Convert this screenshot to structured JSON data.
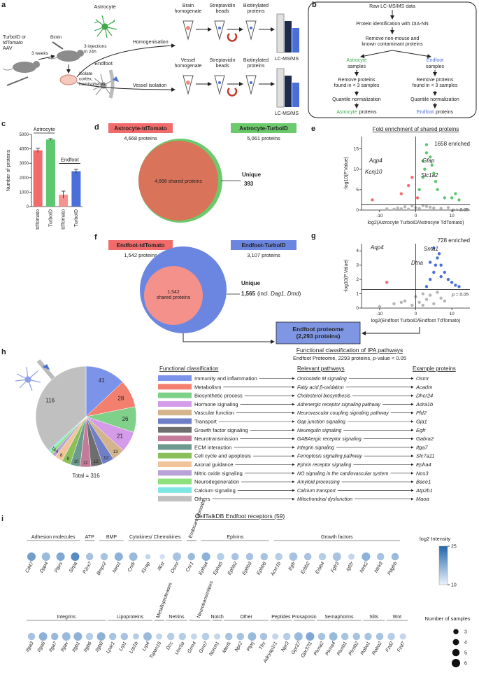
{
  "a": {
    "label": "a",
    "vector": [
      "TurboID or",
      "tdTomato",
      "AAV"
    ],
    "weeks": "3 weeks",
    "biotin": "Biotin",
    "injections": [
      "3 injections",
      "in 24h"
    ],
    "isolate": [
      "Isolate",
      "cortex,",
      "hemispheres"
    ],
    "astrocyte": "Astrocyte",
    "endfoot": "Endfoot",
    "homogenisation": "Homogenisation",
    "vessel_isolation": "Vessel isolation",
    "brain_homogenate": [
      "Brain",
      "homogenate"
    ],
    "vessel_homogenate": [
      "Vessel",
      "homogenate"
    ],
    "beads_top": [
      "Streptavidin",
      "beads"
    ],
    "beads_bottom": [
      "Streptavidin",
      "beads"
    ],
    "proteins_top": [
      "Biotinylated",
      "proteins"
    ],
    "proteins_bottom": [
      "Biotinylated",
      "proteins"
    ],
    "ms_top": "LC-MS/MS",
    "ms_bottom": "LC-MS/MS"
  },
  "b": {
    "label": "b",
    "raw": "Raw LC-MS/MS data",
    "identification": "Protein identification with DIA-NN",
    "remove": [
      "Remove non-mouse and",
      "known contaminant proteins"
    ],
    "astro_samples": {
      "cell": "Astrocyte",
      "rest": "samples"
    },
    "endfoot_samples": {
      "cell": "Endfoot",
      "rest": "samples"
    },
    "filter_left": [
      "Remove proteins",
      "found in < 3 samples"
    ],
    "filter_right": [
      "Remove proteins",
      "found in < 3 samples"
    ],
    "norm_left": "Quantile normalization",
    "norm_right": "Quantile normalization",
    "astro_result": {
      "cell": "Astrocyte",
      "rest": "proteins"
    },
    "endfoot_result": {
      "cell": "Endfoot",
      "rest": "proteins"
    }
  },
  "d": {
    "label": "d",
    "left": "Astrocyte-tdTomato",
    "left_count": "4,668 proteins",
    "right": "Astrocyte-TurboID",
    "right_count": "5,061 proteins",
    "shared": "4,668 shared proteins",
    "unique": "Unique",
    "unique_count": "393"
  },
  "f": {
    "label": "f",
    "left": "Endfoot-tdTomato",
    "left_count": "1,542 proteins",
    "right": "Endfoot-TurboID",
    "right_count": "3,107 proteins",
    "shared": [
      "1,542",
      "shared proteins"
    ],
    "unique": "Unique",
    "unique_count": "1,565",
    "unique_note": [
      "(incl. ",
      "Dag1",
      ", ",
      "Dmd",
      ")"
    ],
    "proteome": [
      "Endfoot proteome",
      "(2,293 proteins)"
    ]
  },
  "h": {
    "label": "h"
  },
  "i": {
    "label": "i"
  },
  "chart_data": [
    {
      "type": "bar",
      "label": "c",
      "ylabel": "Number of proteins",
      "categories": [
        "tdTomato",
        "TurboID",
        "tdTomato",
        "TurboID"
      ],
      "groups": [
        "Astrocyte",
        "Endfoot"
      ],
      "values": [
        3900,
        4650,
        820,
        2450
      ],
      "errors": [
        150,
        60,
        250,
        150
      ],
      "colors": [
        "#f26b6b",
        "#5cc870",
        "#f4938f",
        "#4a6fd8"
      ],
      "ylim": [
        0,
        5000
      ],
      "yticks": [
        0,
        1000,
        2000,
        3000,
        4000,
        5000
      ]
    },
    {
      "type": "scatter",
      "label": "e",
      "title": "Fold enrichment of shared proteins",
      "xlabel": "log2(Astrocyte TurboID/Astrocyte TdTomato)",
      "ylabel": "-log10(P.Value)",
      "annotation": "1658 enriched",
      "threshold_label": "p = 0.05",
      "threshold": 1.3,
      "xline": 0,
      "genes": [
        "Aqp4",
        "Gfap",
        "Kcnj10",
        "Slc1a2"
      ],
      "xlim": [
        -15,
        15
      ],
      "ylim": [
        0,
        18
      ],
      "xticks": [
        -10,
        0,
        10
      ],
      "yticks": [
        0,
        5,
        10,
        15
      ],
      "series": [
        {
          "color": "#b5b5b5",
          "x": [
            -8,
            -5,
            -3,
            -2,
            -1,
            0,
            1,
            2,
            3,
            -4,
            4,
            -6,
            5,
            7,
            9
          ],
          "y": [
            0.3,
            0.5,
            0.8,
            0.2,
            1,
            0.6,
            0.4,
            1.1,
            0.9,
            0.3,
            0.7,
            0.2,
            0.5,
            0.4,
            0.6
          ]
        },
        {
          "color": "#f26b6b",
          "x": [
            -12,
            -4,
            -2,
            -1,
            0.5
          ],
          "y": [
            2.5,
            4,
            6,
            8,
            3
          ]
        },
        {
          "color": "#5cc870",
          "x": [
            1,
            2,
            2.5,
            3,
            3,
            4,
            4.5,
            5,
            5.5,
            6,
            8,
            10,
            11,
            12,
            2
          ],
          "y": [
            5,
            8,
            10,
            14,
            16,
            13,
            11,
            9,
            7,
            5,
            3,
            3,
            4,
            2.5,
            12
          ]
        }
      ]
    },
    {
      "type": "scatter",
      "label": "g",
      "xlabel": "log2(Endfoot TurboID/Endfoot TdTomato)",
      "ylabel": "-log10(P.Value)",
      "annotation": "728 enriched",
      "threshold_label": "p = 0.05",
      "threshold": 1.3,
      "xline": 0,
      "genes": [
        "Aqp4",
        "Snta1",
        "Dtna"
      ],
      "xlim": [
        -15,
        15
      ],
      "ylim": [
        0,
        4.5
      ],
      "xticks": [
        -10,
        0,
        10
      ],
      "yticks": [
        0,
        1,
        2,
        3,
        4
      ],
      "series": [
        {
          "color": "#b5b5b5",
          "x": [
            -10,
            -6,
            -3,
            -1,
            0,
            1,
            2,
            3,
            4,
            5,
            6,
            7,
            8,
            -4,
            2
          ],
          "y": [
            0.1,
            0.3,
            0.5,
            0.2,
            0.8,
            0.4,
            1,
            0.6,
            0.9,
            0.3,
            1.1,
            0.7,
            0.5,
            0.4,
            0.2
          ]
        },
        {
          "color": "#f26b6b",
          "x": [
            -8
          ],
          "y": [
            1.8
          ]
        },
        {
          "color": "#4a6fd8",
          "x": [
            3,
            4,
            5,
            5.5,
            6,
            6.5,
            7,
            8,
            9,
            10,
            11,
            12,
            5,
            7,
            4
          ],
          "y": [
            1.5,
            2,
            2.5,
            3,
            3.5,
            3.8,
            3,
            2.5,
            2,
            1.8,
            1.6,
            1.5,
            4.2,
            2.2,
            3.2
          ]
        }
      ]
    },
    {
      "type": "pie",
      "title": "Functional classification of IPA pathways",
      "subtitle": [
        "Endfoot Proteome, 2293 proteins, ",
        "p",
        "-value < 0.05"
      ],
      "headers": [
        "Functional classification",
        "Relevant pathways",
        "Example proteins"
      ],
      "total": "Total = 316",
      "categories": [
        "Immunity and inflammation",
        "Metabolism",
        "Biosynthetic process",
        "Hormone signaling",
        "Vascular function",
        "Transport",
        "Growth factor signaling",
        "Neurotransmission",
        "ECM interaction",
        "Cell cycle and apoptosis",
        "Axonal guidance",
        "Nitric oxide signaling",
        "Neurodegeneration",
        "Calcium signaling",
        "Others"
      ],
      "values": [
        41,
        28,
        26,
        21,
        13,
        12,
        12,
        11,
        10,
        9,
        8,
        4,
        3,
        2,
        116
      ],
      "colors": [
        "#7b93e8",
        "#f3806f",
        "#7fd18a",
        "#d49be8",
        "#d4b48c",
        "#6f7fc7",
        "#6e6e6e",
        "#c47a9a",
        "#6d9a8f",
        "#8bbf5b",
        "#f2c49a",
        "#b9a3d6",
        "#8ee07a",
        "#7fe6e6",
        "#c0c0c0"
      ],
      "pathways": [
        "Oncostatin M signaling",
        "Fatty acid β-oxidation",
        "Cholesterol biosynthesis",
        "Adrenergic receptor signaling pathway",
        "Neurovascular coupling signaling pathway",
        "Gap junction signaling",
        "Neuregulin signaling",
        "GABAergic receptor signaling",
        "Integrin signaling",
        "Ferroptosis signaling pathway",
        "Ephrin receptor signaling",
        "NO signaling in the cardiovascular system",
        "Amyloid processing",
        "Calcium transport",
        "Mitochondrial dysfunction"
      ],
      "proteins": [
        "Osmr",
        "Acadm",
        "Dhcr24",
        "Adra1b",
        "Pld2",
        "Gja1",
        "Egfr",
        "Gabra2",
        "Itga7",
        "Slc7a11",
        "Epha4",
        "Nos3",
        "Bace1",
        "Atp2b1",
        "Maoa"
      ]
    },
    {
      "type": "bubble",
      "title": "CellTalkDB Endfoot receptors (59)",
      "color_label": "log2 Intensity",
      "clim": [
        10,
        25
      ],
      "cticks": [
        10,
        25
      ],
      "size_label": "Number of samples",
      "sizes": [
        3,
        4,
        5,
        6
      ],
      "rows": [
        {
          "groups": [
            {
              "name": "Adhesion molecules",
              "genes": [
                "Cd47",
                "Dpp4",
                "Ptprs",
                "Sirpa"
              ],
              "intensity": [
                19,
                16,
                18,
                21
              ],
              "samples": [
                6,
                6,
                6,
                6
              ]
            },
            {
              "name": "ATP",
              "genes": [
                "P2rx7"
              ],
              "intensity": [
                15
              ],
              "samples": [
                5
              ]
            },
            {
              "name": "BMP",
              "genes": [
                "Bmpr2",
                "Neo1"
              ],
              "intensity": [
                15,
                17
              ],
              "samples": [
                5,
                6
              ]
            },
            {
              "name": "Cytokines/ Chemokines",
              "genes": [
                "Cntfr",
                "Il1rap",
                "Il6st",
                "Osmr"
              ],
              "intensity": [
                16,
                13,
                12,
                15
              ],
              "samples": [
                6,
                3,
                3,
                6
              ]
            },
            {
              "name": "Endocannabinoids",
              "genes": [
                "Cnr1"
              ],
              "intensity": [
                16
              ],
              "samples": [
                5
              ]
            },
            {
              "name": "Ephrins",
              "genes": [
                "Epha4",
                "Epha5",
                "Ephb2",
                "Ephb3",
                "Ephb6"
              ],
              "intensity": [
                17,
                14,
                15,
                15,
                15
              ],
              "samples": [
                6,
                5,
                5,
                5,
                5
              ]
            },
            {
              "name": "Growth factors",
              "genes": [
                "Acvr1b",
                "Egfr",
                "Erbb2",
                "Erbb4",
                "Fgfr3",
                "Igf2r",
                "Ntrk2",
                "Ntrk3",
                "Pdgfrb"
              ],
              "intensity": [
                14,
                15,
                15,
                14,
                15,
                13,
                17,
                15,
                16
              ],
              "samples": [
                5,
                6,
                5,
                5,
                6,
                4,
                6,
                5,
                5
              ]
            }
          ]
        },
        {
          "groups": [
            {
              "name": "Integrins",
              "genes": [
                "Itga3",
                "Itga6",
                "Itga7",
                "Itgav",
                "Itgb1",
                "Itgb6",
                "Itgb8"
              ],
              "intensity": [
                15,
                17,
                16,
                16,
                17,
                14,
                17
              ],
              "samples": [
                5,
                6,
                5,
                6,
                6,
                5,
                6
              ]
            },
            {
              "name": "Lipoproteins",
              "genes": [
                "Lpar1",
                "Lrp1",
                "Lrp1b",
                "Lrp4"
              ],
              "intensity": [
                15,
                15,
                14,
                16
              ],
              "samples": [
                5,
                5,
                4,
                6
              ]
            },
            {
              "name": "Metalloproteases",
              "genes": [
                "Tspan15"
              ],
              "intensity": [
                13
              ],
              "samples": [
                4
              ]
            },
            {
              "name": "Netrins",
              "genes": [
                "Dcc",
                "Unc5a"
              ],
              "intensity": [
                14,
                14
              ],
              "samples": [
                5,
                5
              ]
            },
            {
              "name": "Neurotransmitters",
              "genes": [
                "Grm4",
                "Grm7"
              ],
              "intensity": [
                13,
                14
              ],
              "samples": [
                4,
                5
              ]
            },
            {
              "name": "Notch",
              "genes": [
                "Notch1"
              ],
              "intensity": [
                13
              ],
              "samples": [
                4
              ]
            },
            {
              "name": "Other",
              "genes": [
                "Mertk",
                "Npr2",
                "Ptprj",
                "Tfrc"
              ],
              "intensity": [
                15,
                15,
                16,
                15
              ],
              "samples": [
                5,
                5,
                6,
                5
              ]
            },
            {
              "name": "Peptides",
              "genes": [
                "Adcyap1r1",
                "Npr3"
              ],
              "intensity": [
                13,
                14
              ],
              "samples": [
                4,
                5
              ]
            },
            {
              "name": "Prosaposin",
              "genes": [
                "Gpr37",
                "Gpr37l1"
              ],
              "intensity": [
                16,
                18
              ],
              "samples": [
                6,
                6
              ]
            },
            {
              "name": "Semaphorins",
              "genes": [
                "Plxna2",
                "Plxna4",
                "Plxnb1",
                "Plxnb2"
              ],
              "intensity": [
                15,
                16,
                15,
                15
              ],
              "samples": [
                5,
                6,
                5,
                5
              ]
            },
            {
              "name": "Slits",
              "genes": [
                "Robo1",
                "Robo2"
              ],
              "intensity": [
                15,
                15
              ],
              "samples": [
                5,
                5
              ]
            },
            {
              "name": "Wnt",
              "genes": [
                "Fzd2",
                "Fzd7"
              ],
              "intensity": [
                14,
                13
              ],
              "samples": [
                5,
                4
              ]
            }
          ]
        }
      ]
    }
  ]
}
